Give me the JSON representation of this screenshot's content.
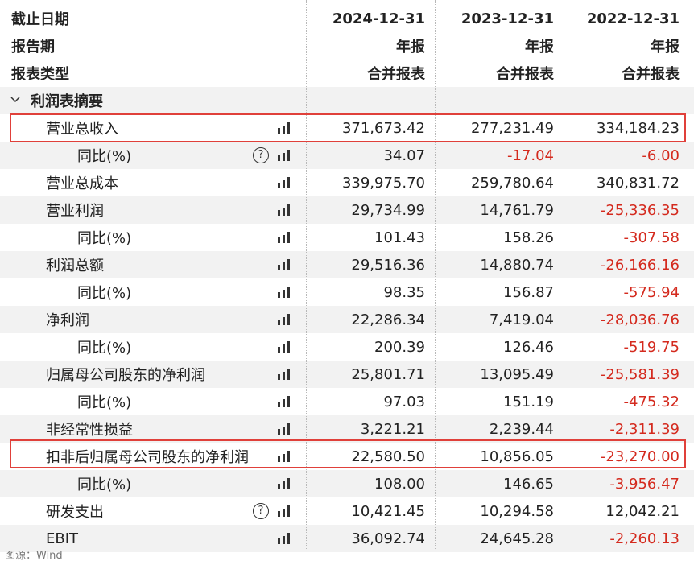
{
  "header": {
    "date_label": "截止日期",
    "period_label": "报告期",
    "type_label": "报表类型",
    "columns": [
      {
        "date": "2024-12-31",
        "period": "年报",
        "type": "合并报表"
      },
      {
        "date": "2023-12-31",
        "period": "年报",
        "type": "合并报表"
      },
      {
        "date": "2022-12-31",
        "period": "年报",
        "type": "合并报表"
      }
    ]
  },
  "section": {
    "title": "利润表摘要"
  },
  "rows": [
    {
      "label": "营业总收入",
      "values": [
        "371,673.42",
        "277,231.49",
        "334,184.23"
      ]
    },
    {
      "label": "同比(%)",
      "values": [
        "34.07",
        "-17.04",
        "-6.00"
      ]
    },
    {
      "label": "营业总成本",
      "values": [
        "339,975.70",
        "259,780.64",
        "340,831.72"
      ]
    },
    {
      "label": "营业利润",
      "values": [
        "29,734.99",
        "14,761.79",
        "-25,336.35"
      ]
    },
    {
      "label": "同比(%)",
      "values": [
        "101.43",
        "158.26",
        "-307.58"
      ]
    },
    {
      "label": "利润总额",
      "values": [
        "29,516.36",
        "14,880.74",
        "-26,166.16"
      ]
    },
    {
      "label": "同比(%)",
      "values": [
        "98.35",
        "156.87",
        "-575.94"
      ]
    },
    {
      "label": "净利润",
      "values": [
        "22,286.34",
        "7,419.04",
        "-28,036.76"
      ]
    },
    {
      "label": "同比(%)",
      "values": [
        "200.39",
        "126.46",
        "-519.75"
      ]
    },
    {
      "label": "归属母公司股东的净利润",
      "values": [
        "25,801.71",
        "13,095.49",
        "-25,581.39"
      ]
    },
    {
      "label": "同比(%)",
      "values": [
        "97.03",
        "151.19",
        "-475.32"
      ]
    },
    {
      "label": "非经常性损益",
      "values": [
        "3,221.21",
        "2,239.44",
        "-2,311.39"
      ]
    },
    {
      "label": "扣非后归属母公司股东的净利润",
      "values": [
        "22,580.50",
        "10,856.05",
        "-23,270.00"
      ]
    },
    {
      "label": "同比(%)",
      "values": [
        "108.00",
        "146.65",
        "-3,956.47"
      ]
    },
    {
      "label": "研发支出",
      "values": [
        "10,421.45",
        "10,294.58",
        "12,042.21"
      ]
    },
    {
      "label": "EBIT",
      "values": [
        "36,092.74",
        "24,645.28",
        "-2,260.13"
      ]
    }
  ],
  "footer": {
    "source": "图源：Wind"
  },
  "colors": {
    "negative": "#d42a1e",
    "highlight": "#e0403a",
    "shade": "#f2f2f2"
  },
  "icons": {
    "chart": "bar-chart-icon",
    "help": "help-circle-icon",
    "toggle": "chevron-down-icon"
  }
}
